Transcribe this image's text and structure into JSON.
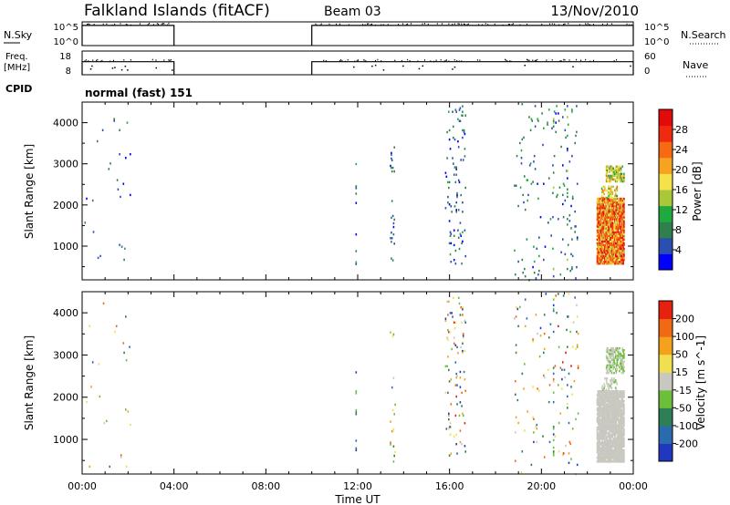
{
  "header": {
    "station": "Falkland Islands (fitACF)",
    "beam": "Beam 03",
    "date": "13/Nov/2010"
  },
  "panels": {
    "nsky_label": "N.Sky",
    "nsky_ticks": [
      "10^5",
      "10^0"
    ],
    "nsearch_label": "N.Search",
    "nsearch_ticks": [
      "10^5",
      "10^0"
    ],
    "freq_label": "Freq.",
    "freq_unit": "[MHz]",
    "freq_ticks": [
      "18",
      "8"
    ],
    "nave_label": "Nave",
    "nave_ticks": [
      "60",
      "0"
    ],
    "cpid_label": "CPID",
    "cpid_text": "normal (fast) 151"
  },
  "power_colorbar": {
    "label": "Power [dB]",
    "ticks": [
      "28",
      "24",
      "20",
      "16",
      "12",
      "8",
      "4"
    ],
    "colors": [
      "#0000ff",
      "#2b4fb0",
      "#2f7f4f",
      "#1faa3f",
      "#a8c83a",
      "#f4e24a",
      "#f8a320",
      "#f56a12",
      "#ef2a10",
      "#e30a0a"
    ]
  },
  "velocity_colorbar": {
    "label": "Velocity [m s^-1]",
    "ticks": [
      "200",
      "100",
      "50",
      "15",
      "-15",
      "-50",
      "-100",
      "-200"
    ],
    "colors": [
      "#2038c0",
      "#2a6bb0",
      "#2e7f55",
      "#6cbf3a",
      "#c8c8c0",
      "#f0e050",
      "#f4a21c",
      "#f06a14",
      "#e82010"
    ]
  },
  "chart_data": [
    {
      "type": "heatmap",
      "name": "power",
      "xlabel": "Time UT",
      "ylabel": "Slant Range [km]",
      "x_ticks": [
        "00:00",
        "04:00",
        "08:00",
        "12:00",
        "16:00",
        "20:00",
        "00:00"
      ],
      "y_ticks": [
        "1000",
        "2000",
        "3000",
        "4000"
      ],
      "xlim": [
        0,
        24
      ],
      "ylim": [
        180,
        4500
      ],
      "colorbar_range": [
        0,
        32
      ],
      "clusters": [
        {
          "t0": 22.4,
          "t1": 23.6,
          "r0": 600,
          "r1": 2200,
          "density": 0.85,
          "v0": 14,
          "v1": 32
        },
        {
          "t0": 22.8,
          "t1": 23.6,
          "r0": 2600,
          "r1": 3000,
          "density": 0.6,
          "v0": 8,
          "v1": 22
        },
        {
          "t0": 22.6,
          "t1": 23.3,
          "r0": 2200,
          "r1": 2500,
          "density": 0.35,
          "v0": 10,
          "v1": 24
        },
        {
          "t0": 18.8,
          "t1": 21.6,
          "r0": 200,
          "r1": 4500,
          "density": 0.015,
          "v0": 2,
          "v1": 12
        },
        {
          "t0": 13.4,
          "t1": 13.6,
          "r0": 500,
          "r1": 3600,
          "density": 0.03,
          "v0": 2,
          "v1": 10
        },
        {
          "t0": 15.8,
          "t1": 16.7,
          "r0": 600,
          "r1": 4500,
          "density": 0.03,
          "v0": 2,
          "v1": 10
        },
        {
          "t0": 0.1,
          "t1": 2.1,
          "r0": 200,
          "r1": 4300,
          "density": 0.006,
          "v0": 2,
          "v1": 10
        }
      ],
      "columns": [
        {
          "t": 11.9,
          "r0": 500,
          "r1": 3200
        },
        {
          "t": 20.5,
          "r0": 200,
          "r1": 4400
        },
        {
          "t": 21.1,
          "r0": 200,
          "r1": 4500
        }
      ]
    },
    {
      "type": "heatmap",
      "name": "velocity",
      "xlabel": "Time UT",
      "ylabel": "Slant Range [km]",
      "x_ticks": [
        "00:00",
        "04:00",
        "08:00",
        "12:00",
        "16:00",
        "20:00",
        "00:00"
      ],
      "y_ticks": [
        "1000",
        "2000",
        "3000",
        "4000"
      ],
      "xlim": [
        0,
        24
      ],
      "ylim": [
        180,
        4500
      ],
      "colorbar_range": [
        -250,
        250
      ],
      "clusters": [
        {
          "t0": 22.4,
          "t1": 23.6,
          "r0": 500,
          "r1": 2200,
          "density": 0.85,
          "v0": -10,
          "v1": 10
        },
        {
          "t0": 22.8,
          "t1": 23.6,
          "r0": 2600,
          "r1": 3200,
          "density": 0.5,
          "v0": -60,
          "v1": 20
        },
        {
          "t0": 22.6,
          "t1": 23.3,
          "r0": 2200,
          "r1": 2500,
          "density": 0.3,
          "v0": -40,
          "v1": 20
        },
        {
          "t0": 18.8,
          "t1": 21.6,
          "r0": 200,
          "r1": 4500,
          "density": 0.015,
          "v0": -220,
          "v1": 220
        },
        {
          "t0": 13.4,
          "t1": 13.6,
          "r0": 500,
          "r1": 3600,
          "density": 0.03,
          "v0": -220,
          "v1": 220
        },
        {
          "t0": 15.8,
          "t1": 16.7,
          "r0": 600,
          "r1": 4500,
          "density": 0.03,
          "v0": -220,
          "v1": 220
        },
        {
          "t0": 0.1,
          "t1": 2.1,
          "r0": 200,
          "r1": 4300,
          "density": 0.006,
          "v0": -220,
          "v1": 220
        }
      ],
      "columns": [
        {
          "t": 11.9,
          "r0": 500,
          "r1": 3200
        },
        {
          "t": 20.5,
          "r0": 200,
          "r1": 4400
        },
        {
          "t": 21.1,
          "r0": 200,
          "r1": 4500
        }
      ]
    },
    {
      "type": "line",
      "name": "nsky",
      "segments": [
        [
          0,
          4.0
        ],
        [
          10.0,
          24
        ]
      ],
      "level": 0.85
    },
    {
      "type": "line",
      "name": "freq",
      "segments": [
        [
          0,
          4.0
        ],
        [
          10.0,
          24
        ]
      ],
      "level": 0.55
    }
  ]
}
